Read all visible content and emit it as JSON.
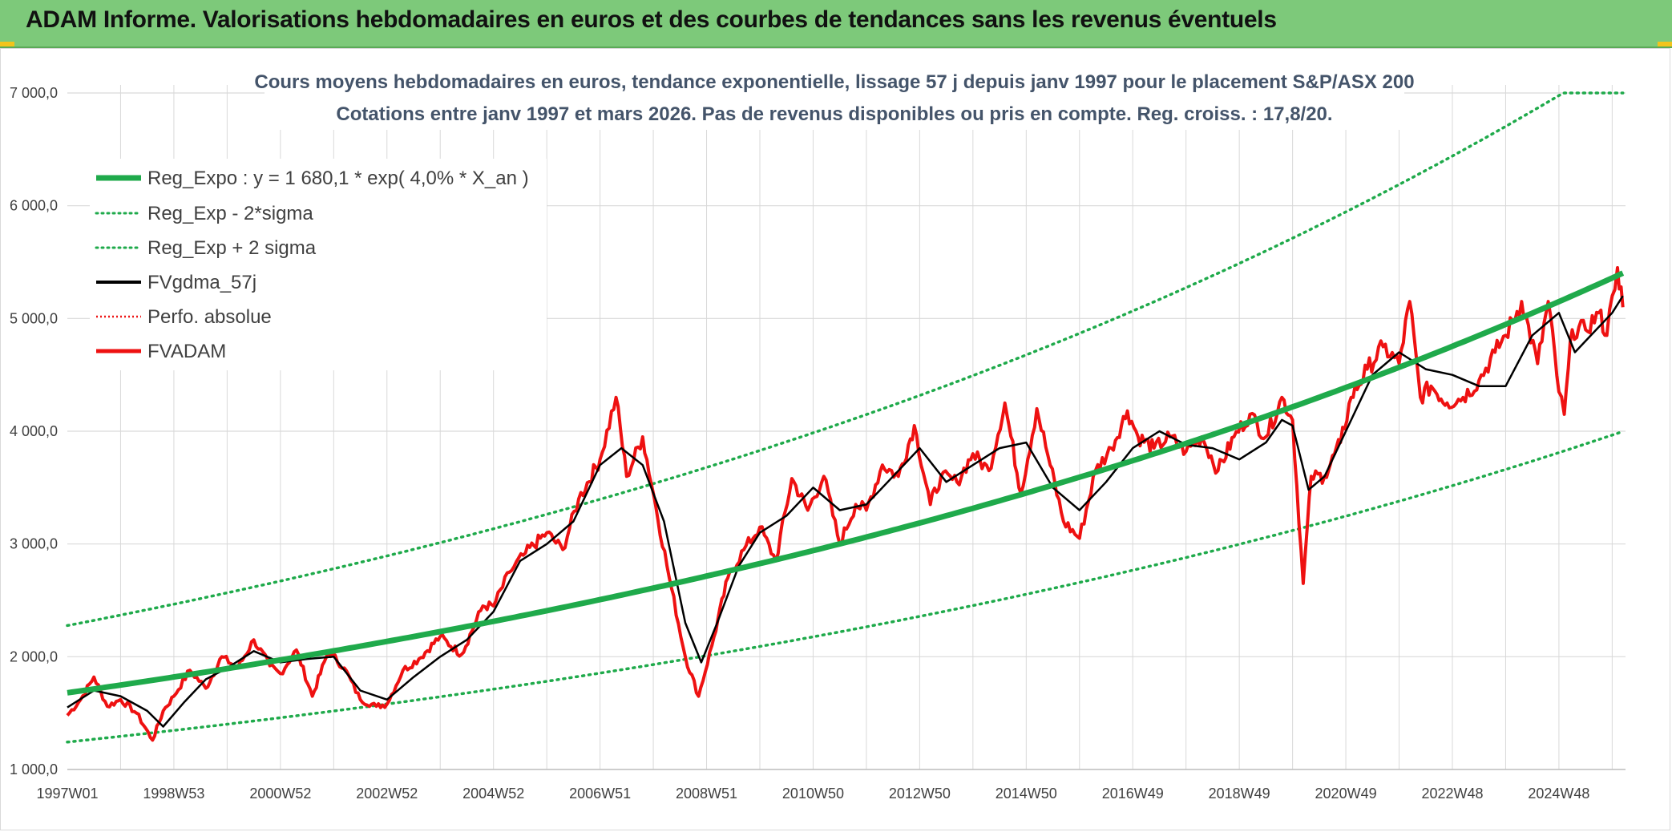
{
  "banner": {
    "title": "ADAM Informe. Valorisations hebdomadaires en euros et des courbes de tendances sans les revenus éventuels"
  },
  "colors": {
    "banner_bg": "#7dc97a",
    "trend": "#1faa4b",
    "band": "#1faa4b",
    "smooth": "#000000",
    "price": "#ee1111",
    "perfo": "#ee1111",
    "grid": "#d9d9d9"
  },
  "chart_data": {
    "type": "line",
    "title_lines": [
      "Cours moyens hebdomadaires en euros, tendance exponentielle, lissage 57 j depuis janv 1997 pour le placement S&P/ASX 200",
      "Cotations entre janv 1997 et mars 2026. Pas de revenus disponibles ou pris en compte. Reg. croiss. : 17,8/20."
    ],
    "ylim": [
      1000,
      7000
    ],
    "y_ticks": [
      "1 000,0",
      "2 000,0",
      "3 000,0",
      "4 000,0",
      "5 000,0",
      "6 000,0",
      "7 000,0"
    ],
    "y_tick_values": [
      1000,
      2000,
      3000,
      4000,
      5000,
      6000,
      7000
    ],
    "xlim": [
      1997.0,
      2026.25
    ],
    "x_ticks": [
      "1997W01",
      "1998W53",
      "2000W52",
      "2002W52",
      "2004W52",
      "2006W51",
      "2008W51",
      "2010W50",
      "2012W50",
      "2014W50",
      "2016W49",
      "2018W49",
      "2020W49",
      "2022W48",
      "2024W48"
    ],
    "x_tick_values": [
      1997.0,
      1999.0,
      2001.0,
      2003.0,
      2005.0,
      2007.0,
      2009.0,
      2011.0,
      2013.0,
      2015.0,
      2017.0,
      2019.0,
      2021.0,
      2023.0,
      2025.0
    ],
    "legend": [
      {
        "key": "reg_expo",
        "label": "Reg_Expo : y = 1 680,1 * exp( 4,0% *  X_an )",
        "style": "solid-thick",
        "color": "#1faa4b"
      },
      {
        "key": "reg_minus",
        "label": "Reg_Exp - 2*sigma",
        "style": "dotted",
        "color": "#1faa4b"
      },
      {
        "key": "reg_plus",
        "label": "Reg_Exp + 2 sigma",
        "style": "dotted",
        "color": "#1faa4b"
      },
      {
        "key": "fvgdma",
        "label": "FVgdma_57j",
        "style": "solid",
        "color": "#000000"
      },
      {
        "key": "perfo",
        "label": "Perfo. absolue",
        "style": "dotted",
        "color": "#ee1111"
      },
      {
        "key": "fvadam",
        "label": "FVADAM",
        "style": "solid-thick",
        "color": "#ee1111"
      }
    ],
    "regression": {
      "a": 1680.1,
      "rate": 0.04,
      "x0": 1997.0,
      "minus_2sigma_factor": 0.74,
      "plus_2sigma_factor": 1.355,
      "cap": 7000
    },
    "series_fvadam": {
      "name": "FVADAM",
      "x": [
        1997.0,
        1997.25,
        1997.5,
        1997.75,
        1998.0,
        1998.3,
        1998.6,
        1998.8,
        1999.0,
        1999.3,
        1999.6,
        1999.9,
        2000.2,
        2000.5,
        2000.8,
        2001.0,
        2001.3,
        2001.6,
        2001.9,
        2002.2,
        2002.5,
        2002.8,
        2003.0,
        2003.3,
        2003.6,
        2004.0,
        2004.4,
        2004.8,
        2005.0,
        2005.3,
        2005.6,
        2006.0,
        2006.3,
        2006.6,
        2007.0,
        2007.3,
        2007.5,
        2007.8,
        2008.0,
        2008.3,
        2008.6,
        2008.85,
        2009.1,
        2009.4,
        2009.7,
        2010.0,
        2010.3,
        2010.6,
        2010.9,
        2011.2,
        2011.5,
        2011.8,
        2012.0,
        2012.3,
        2012.6,
        2012.9,
        2013.2,
        2013.4,
        2013.7,
        2014.0,
        2014.3,
        2014.6,
        2014.9,
        2015.2,
        2015.45,
        2015.7,
        2016.0,
        2016.3,
        2016.6,
        2016.9,
        2017.1,
        2017.4,
        2017.7,
        2018.0,
        2018.3,
        2018.6,
        2018.9,
        2019.2,
        2019.5,
        2019.8,
        2020.0,
        2020.2,
        2020.35,
        2020.6,
        2020.9,
        2021.1,
        2021.4,
        2021.7,
        2022.0,
        2022.2,
        2022.4,
        2022.6,
        2022.9,
        2023.2,
        2023.5,
        2023.8,
        2024.0,
        2024.3,
        2024.6,
        2024.8,
        2025.0,
        2025.1,
        2025.25,
        2025.5,
        2025.75,
        2025.9,
        2026.0,
        2026.1,
        2026.2
      ],
      "y": [
        1480,
        1620,
        1820,
        1560,
        1620,
        1500,
        1260,
        1520,
        1650,
        1880,
        1720,
        2000,
        1900,
        2150,
        1920,
        1850,
        2060,
        1650,
        2050,
        1900,
        1620,
        1560,
        1580,
        1880,
        1980,
        2180,
        2020,
        2450,
        2450,
        2750,
        2920,
        3100,
        2950,
        3400,
        3750,
        4300,
        3600,
        3950,
        3450,
        2700,
        2000,
        1650,
        2100,
        2700,
        2950,
        3150,
        2850,
        3580,
        3300,
        3600,
        3000,
        3350,
        3300,
        3700,
        3600,
        4050,
        3350,
        3600,
        3550,
        3800,
        3650,
        4250,
        3450,
        4200,
        3700,
        3200,
        3050,
        3650,
        3850,
        4180,
        3950,
        3850,
        3950,
        3820,
        3950,
        3650,
        3950,
        4150,
        3950,
        4300,
        4100,
        2650,
        3600,
        3600,
        3900,
        4300,
        4550,
        4750,
        4600,
        5150,
        4300,
        4400,
        4250,
        4300,
        4450,
        4700,
        4850,
        5150,
        4600,
        5150,
        4350,
        4150,
        4900,
        4900,
        5050,
        4850,
        5200,
        5450,
        5100
      ]
    },
    "series_fvgdma": {
      "name": "FVgdma_57j",
      "x": [
        1997.0,
        1997.5,
        1998.0,
        1998.5,
        1998.8,
        1999.2,
        1999.6,
        2000.0,
        2000.5,
        2001.0,
        2001.5,
        2002.0,
        2002.5,
        2003.0,
        2003.5,
        2004.0,
        2004.5,
        2005.0,
        2005.5,
        2006.0,
        2006.5,
        2007.0,
        2007.4,
        2007.8,
        2008.2,
        2008.6,
        2008.9,
        2009.2,
        2009.6,
        2010.0,
        2010.5,
        2011.0,
        2011.5,
        2012.0,
        2012.5,
        2013.0,
        2013.5,
        2014.0,
        2014.5,
        2015.0,
        2015.5,
        2016.0,
        2016.5,
        2017.0,
        2017.5,
        2018.0,
        2018.5,
        2019.0,
        2019.5,
        2019.8,
        2020.0,
        2020.3,
        2020.6,
        2021.0,
        2021.5,
        2022.0,
        2022.5,
        2023.0,
        2023.5,
        2024.0,
        2024.5,
        2025.0,
        2025.3,
        2025.6,
        2026.0,
        2026.2
      ],
      "y": [
        1550,
        1700,
        1650,
        1520,
        1380,
        1600,
        1800,
        1900,
        2050,
        1950,
        1980,
        2000,
        1700,
        1620,
        1820,
        2000,
        2150,
        2400,
        2850,
        3000,
        3200,
        3700,
        3850,
        3700,
        3200,
        2300,
        1950,
        2300,
        2800,
        3100,
        3250,
        3500,
        3300,
        3350,
        3600,
        3850,
        3550,
        3700,
        3850,
        3900,
        3500,
        3300,
        3550,
        3850,
        4000,
        3880,
        3850,
        3750,
        3900,
        4100,
        4050,
        3480,
        3600,
        4000,
        4500,
        4700,
        4550,
        4500,
        4400,
        4400,
        4850,
        5050,
        4700,
        4850,
        5050,
        5200
      ]
    }
  }
}
